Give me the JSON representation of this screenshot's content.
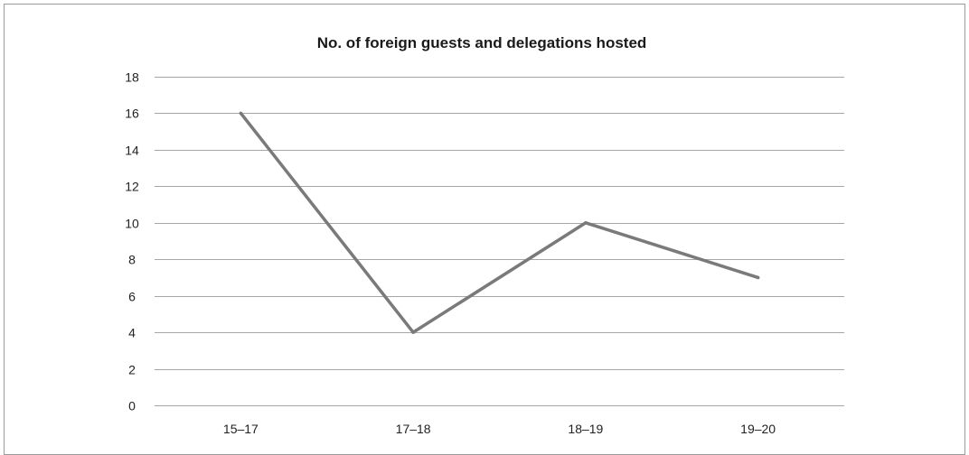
{
  "chart_data": {
    "type": "line",
    "title": "No. of foreign guests and delegations hosted",
    "xlabel": "",
    "ylabel": "",
    "categories": [
      "15–17",
      "17–18",
      "18–19",
      "19–20"
    ],
    "series": [
      {
        "values": [
          16,
          4,
          10,
          7
        ],
        "color": "#7a7a7a"
      }
    ],
    "ylim": [
      0,
      18
    ],
    "y_ticks": [
      0,
      2,
      4,
      6,
      8,
      10,
      12,
      14,
      16,
      18
    ],
    "grid": true,
    "legend": "none",
    "gridline_color": "#a6a6a6"
  }
}
